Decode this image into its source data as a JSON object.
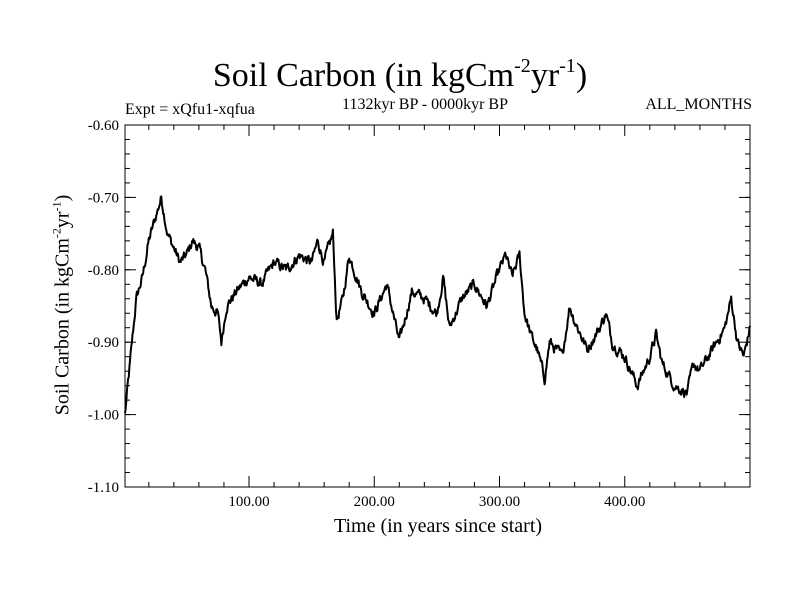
{
  "chart_data": {
    "type": "line",
    "title": {
      "base": "Soil Carbon (in kgCm",
      "exp1": "-2",
      "mid": "yr",
      "exp2": "-1",
      "close": ")"
    },
    "subtitle_left": "Expt = xQfu1-xqfua",
    "subtitle_center": "1132kyr BP - 0000kyr BP",
    "subtitle_right": "ALL_MONTHS",
    "xlabel": "Time (in years since start)",
    "ylabel": {
      "base": "Soil Carbon (in kgCm",
      "exp1": "-2",
      "mid": "yr",
      "exp2": "-1",
      "close": ")"
    },
    "xlim": [
      1,
      500
    ],
    "ylim": [
      -1.1,
      -0.6
    ],
    "xticks": [
      100,
      200,
      300,
      400
    ],
    "xtick_labels": [
      "100.00",
      "200.00",
      "300.00",
      "400.00"
    ],
    "yticks": [
      -1.1,
      -1.0,
      -0.9,
      -0.8,
      -0.7,
      -0.6
    ],
    "ytick_labels": [
      "-1.10",
      "-1.00",
      "-0.90",
      "-0.80",
      "-0.70",
      "-0.60"
    ],
    "series": [
      {
        "name": "Soil Carbon",
        "color": "#000000",
        "x": [
          1,
          5,
          10,
          15,
          20,
          25,
          30,
          35,
          40,
          45,
          50,
          55,
          60,
          65,
          70,
          75,
          78,
          82,
          90,
          100,
          110,
          120,
          130,
          140,
          150,
          155,
          160,
          167,
          170,
          175,
          180,
          190,
          200,
          210,
          220,
          230,
          240,
          250,
          255,
          260,
          270,
          280,
          290,
          300,
          305,
          310,
          316,
          320,
          325,
          330,
          336,
          340,
          350,
          356,
          360,
          370,
          380,
          385,
          390,
          400,
          410,
          420,
          425,
          430,
          440,
          450,
          455,
          460,
          470,
          480,
          485,
          490,
          495,
          500
        ],
        "y": [
          -1.0,
          -0.93,
          -0.84,
          -0.81,
          -0.76,
          -0.73,
          -0.7,
          -0.75,
          -0.77,
          -0.79,
          -0.78,
          -0.76,
          -0.77,
          -0.8,
          -0.85,
          -0.86,
          -0.9,
          -0.85,
          -0.83,
          -0.81,
          -0.82,
          -0.79,
          -0.8,
          -0.78,
          -0.79,
          -0.76,
          -0.79,
          -0.75,
          -0.87,
          -0.84,
          -0.78,
          -0.83,
          -0.86,
          -0.82,
          -0.9,
          -0.83,
          -0.84,
          -0.86,
          -0.81,
          -0.88,
          -0.84,
          -0.82,
          -0.85,
          -0.8,
          -0.78,
          -0.81,
          -0.78,
          -0.86,
          -0.89,
          -0.91,
          -0.95,
          -0.9,
          -0.92,
          -0.85,
          -0.87,
          -0.91,
          -0.88,
          -0.86,
          -0.9,
          -0.92,
          -0.96,
          -0.92,
          -0.89,
          -0.93,
          -0.96,
          -0.97,
          -0.93,
          -0.94,
          -0.91,
          -0.88,
          -0.84,
          -0.9,
          -0.92,
          -0.88
        ]
      }
    ]
  }
}
